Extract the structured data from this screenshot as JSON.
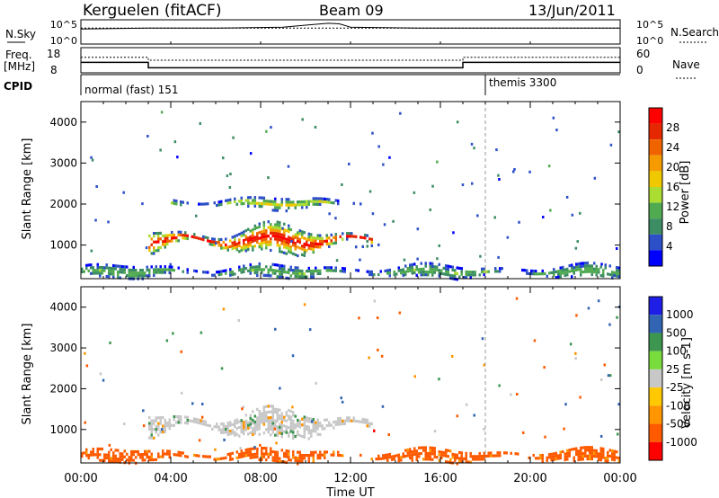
{
  "header": {
    "station": "Kerguelen (fitACF)",
    "beam": "Beam 09",
    "date": "13/Jun/2011"
  },
  "top_panel": {
    "left_label": "N.Sky",
    "right_label": "N.Search",
    "left_ticks": [
      "10^5",
      "10^0"
    ],
    "right_ticks": [
      "10^5",
      "10^0"
    ]
  },
  "freq_panel": {
    "left_label_1": "Freq.",
    "left_label_2": "[MHz]",
    "right_label": "Nave",
    "left_ticks": [
      "18",
      "8"
    ],
    "right_ticks": [
      "60",
      "0"
    ]
  },
  "cpid_panel": {
    "label": "CPID",
    "modes": [
      {
        "start_hour": 0,
        "name": "normal (fast) 151"
      },
      {
        "start_hour": 18,
        "name": "themis 3300"
      }
    ]
  },
  "colors": {
    "power_scale": [
      "#0000ff",
      "#2d50c8",
      "#3c8c64",
      "#50aa50",
      "#aadc32",
      "#f0c800",
      "#f59b00",
      "#f06400",
      "#e62800",
      "#ff0000"
    ],
    "velocity_scale": [
      "#ff0000",
      "#ff5a00",
      "#ff9600",
      "#ffc800",
      "#c8c8c8",
      "#78dc3c",
      "#3c9650",
      "#3264b4",
      "#1e1ee6"
    ],
    "ground_scatter": "#c8c8c8"
  },
  "chart_data": [
    {
      "type": "line",
      "title": "Kerguelen (fitACF) Beam 09 13/Jun/2011",
      "series": [
        {
          "name": "N.Sky",
          "x": [
            0,
            3,
            6,
            9,
            10,
            11,
            11.5,
            12,
            15,
            18,
            21,
            24
          ],
          "y": [
            2000,
            3000,
            3000,
            5000,
            15000,
            40000,
            30000,
            5000,
            3000,
            3000,
            3000,
            3000
          ]
        },
        {
          "name": "N.Search",
          "x": [
            0,
            24
          ],
          "y": [
            3000,
            3000
          ]
        }
      ],
      "xlim": [
        0,
        24
      ],
      "ylim": [
        1,
        100000
      ],
      "yscale": "log"
    },
    {
      "type": "line",
      "series": [
        {
          "name": "Freq.",
          "x": [
            0,
            3,
            3,
            17,
            17,
            24
          ],
          "y": [
            12,
            12,
            9.5,
            9.5,
            12,
            12
          ]
        },
        {
          "name": "Nave",
          "x": [
            0,
            3,
            3,
            17,
            17,
            24
          ],
          "y": [
            38,
            38,
            30,
            30,
            38,
            38
          ]
        }
      ],
      "left_ylim": [
        8,
        18
      ],
      "right_ylim": [
        0,
        60
      ]
    },
    {
      "type": "heatmap",
      "xlabel": "",
      "ylabel": "Slant Range [km]",
      "colorbar_label": "Power [dB]",
      "colorbar_ticks": [
        "28",
        "24",
        "20",
        "16",
        "12",
        "8",
        "4"
      ],
      "xlim": [
        0,
        24
      ],
      "ylim": [
        180,
        4500
      ],
      "yticks": [
        "1000",
        "2000",
        "3000",
        "4000"
      ],
      "xticks": [
        "00:00",
        "04:00",
        "08:00",
        "12:00",
        "16:00",
        "20:00",
        "00:00"
      ],
      "scatter_regions": [
        {
          "t_start": 3.0,
          "t_end": 13.0,
          "range_center": 1150,
          "range_halfwidth": 300,
          "peak_power": 28
        },
        {
          "t_start": 0.0,
          "t_end": 24.0,
          "range_center": 380,
          "range_halfwidth": 140,
          "peak_power": 10
        },
        {
          "t_start": 4.0,
          "t_end": 12.5,
          "range_center": 2050,
          "range_halfwidth": 120,
          "peak_power": 14
        },
        {
          "t_start": 12.2,
          "t_end": 13.3,
          "range_center": 1000,
          "range_halfwidth": 80,
          "peak_power": 20
        }
      ],
      "reference_time": "18:00"
    },
    {
      "type": "heatmap",
      "xlabel": "Time UT",
      "ylabel": "Slant Range [km]",
      "colorbar_label": "Velocity [m s-1]",
      "colorbar_ticks": [
        "1000",
        "500",
        "100",
        "25",
        "-25",
        "-100",
        "-500",
        "-1000"
      ],
      "xlim": [
        0,
        24
      ],
      "ylim": [
        180,
        4500
      ],
      "yticks": [
        "1000",
        "2000",
        "3000",
        "4000"
      ],
      "xticks": [
        "00:00",
        "04:00",
        "08:00",
        "12:00",
        "16:00",
        "20:00",
        "00:00"
      ],
      "scatter_regions": [
        {
          "t_start": 3.0,
          "t_end": 13.0,
          "range_center": 1150,
          "range_halfwidth": 300,
          "velocity": 0
        },
        {
          "t_start": 0.0,
          "t_end": 24.0,
          "range_center": 380,
          "range_halfwidth": 140,
          "velocity": -100
        },
        {
          "t_start": 12.2,
          "t_end": 13.3,
          "range_center": 1000,
          "range_halfwidth": 80,
          "velocity": -500
        }
      ],
      "reference_time": "18:00"
    }
  ]
}
